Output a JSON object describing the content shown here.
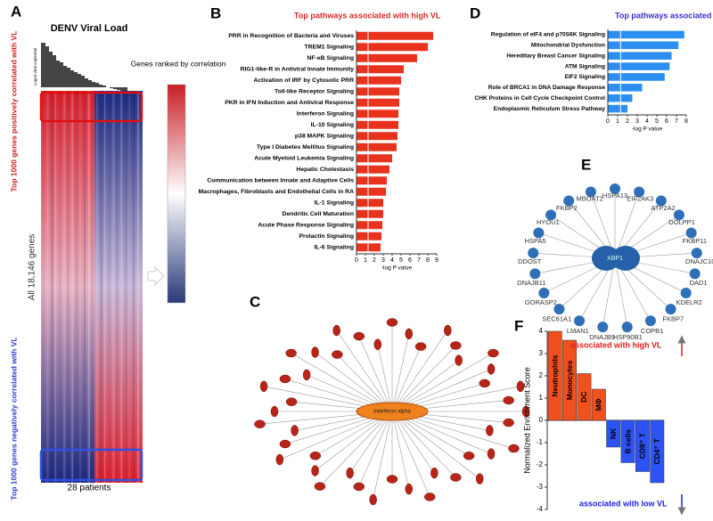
{
  "chart_data": [
    {
      "panel": "B",
      "type": "bar",
      "orientation": "horizontal",
      "title": "Top pathways associated with high VL",
      "title_color": "#d42a2a",
      "color": "#e8321e",
      "categories": [
        "PRR in Recognition of Bacteria and Viruses",
        "TREM1 Signaling",
        "NF-κB Signaling",
        "RIG1-like-R in Antiviral Innate Immunity",
        "Activation of IRF by Cytosolic PRR",
        "Toll-like Receptor Signaling",
        "PKR in IFN Induction and Antiviral Response",
        "Interferon Signaling",
        "IL-10 Signaling",
        "p38 MAPK Signaling",
        "Type I Diabetes Mellitus Signaling",
        "Acute Myeloid Leukemia Signaling",
        "Hepatic Cholestasis",
        "Communication between Innate and Adaptive Cells",
        "Macrophages, Fibroblasts and Endothelial Cells in RA",
        "IL-1 Signaling",
        "Dendritic Cell Maturation",
        "Acute Phase Response Signaling",
        "Prolactin Signaling",
        "IL-6 Signaling"
      ],
      "values": [
        8.6,
        8.0,
        6.8,
        5.3,
        5.0,
        4.8,
        4.8,
        4.7,
        4.7,
        4.6,
        4.5,
        4.0,
        3.7,
        3.4,
        3.3,
        3.0,
        3.0,
        2.9,
        2.8,
        2.7
      ],
      "xlim": [
        0,
        9
      ],
      "xticks": [
        0,
        1,
        2,
        3,
        4,
        5,
        6,
        7,
        8,
        9
      ],
      "xlabel": "-log P value",
      "reference_line": 1.3
    },
    {
      "panel": "D",
      "type": "bar",
      "orientation": "horizontal",
      "title": "Top pathways associated with low VL",
      "title_color": "#3a2fd0",
      "color": "#2b8ef0",
      "categories": [
        "Regulation of eIF4 and p70S6K Signaling",
        "Mitochondrial Dysfunction",
        "Hereditary Breast Cancer Signaling",
        "ATM Signaling",
        "EIF2 Signaling",
        "Role of BRCA1 in DNA Damage Response",
        "CHK Proteins in Cell Cycle Checkpoint Control",
        "Endoplasmic Reticulum Stress Pathway"
      ],
      "values": [
        7.8,
        7.2,
        6.5,
        6.3,
        5.8,
        3.5,
        2.5,
        2.0
      ],
      "xlim": [
        0,
        8
      ],
      "xticks": [
        0,
        1,
        2,
        3,
        4,
        5,
        6,
        7,
        8
      ],
      "xlabel": "-log P value",
      "reference_line": 1.3
    },
    {
      "panel": "F",
      "type": "bar",
      "orientation": "vertical",
      "ylabel": "Normalized Enrichment Score",
      "categories": [
        "Neutrophils",
        "Monocytes",
        "DC",
        "MΦ",
        "NK",
        "B cells",
        "CD8⁺ T",
        "CD4⁺ T"
      ],
      "values": [
        4.0,
        3.6,
        2.1,
        1.4,
        -1.2,
        -1.9,
        -2.3,
        -2.8
      ],
      "colors": [
        "#f0501e",
        "#f0501e",
        "#f0501e",
        "#f0501e",
        "#2d52f5",
        "#2d52f5",
        "#2d52f5",
        "#2d52f5"
      ],
      "ylim": [
        -4,
        4
      ],
      "yticks": [
        -4,
        -3,
        -2,
        -1,
        0,
        1,
        2,
        3,
        4
      ],
      "annotations": [
        {
          "text": "associated with high VL",
          "color": "#e02020"
        },
        {
          "text": "associated with low VL",
          "color": "#2020e0"
        }
      ]
    }
  ],
  "panel_a": {
    "panel": "A",
    "title": "DENV Viral Load",
    "bar_axis_label": "Log10 viral copies/ml",
    "top_label": "Top 1000 genes positively correlated with VL",
    "middle_label": "All 18,146 genes",
    "bottom_label": "Top 1000 genes negatively correlated with VL",
    "x_label": "28 patients",
    "legend_label": "Genes ranked by correlation"
  },
  "panel_c": {
    "panel": "C",
    "center": "Interferon alpha"
  },
  "panel_e": {
    "panel": "E",
    "center": "XBP1",
    "nodes": [
      "HSPA13",
      "EIF2AK3",
      "ATP2A2",
      "DOLPP1",
      "FKBP11",
      "DNAJC10",
      "DAD1",
      "KDELR2",
      "FKBP7",
      "COPB1",
      "HSP90B1",
      "DNAJB9",
      "LMAN1",
      "SEC61A1",
      "GORASP2",
      "DNAJB11",
      "DDOST",
      "HSPA5",
      "HYOU1",
      "FKBP2",
      "MBOAT2"
    ]
  }
}
